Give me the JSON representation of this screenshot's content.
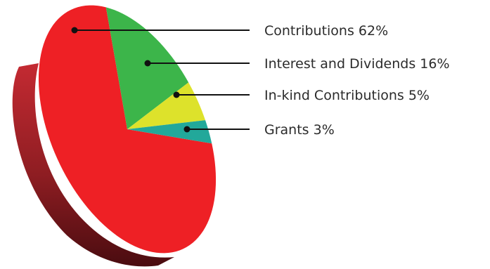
{
  "chart_data": {
    "type": "pie",
    "style": "3d-tilted",
    "categories": [
      "Contributions",
      "Interest and Dividends",
      "In-kind Contributions",
      "Grants"
    ],
    "values": [
      62,
      16,
      5,
      3
    ],
    "unit": "%",
    "labels": [
      "Contributions 62%",
      "Interest and Dividends 16%",
      "In-kind Contributions 5%",
      "Grants 3%"
    ],
    "colors": [
      "#ee2025",
      "#3cb54a",
      "#dde22b",
      "#22a89a"
    ],
    "edge_color": "#8a1c1e",
    "legend_placement": "right, with leader lines to slices",
    "title": "",
    "xlabel": "",
    "ylabel": ""
  }
}
